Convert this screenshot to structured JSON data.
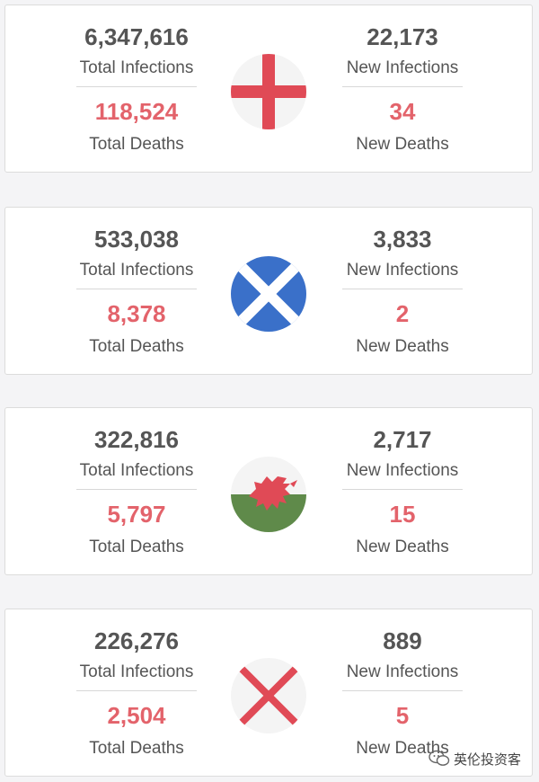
{
  "labels": {
    "total_infections": "Total Infections",
    "new_infections": "New Infections",
    "total_deaths": "Total Deaths",
    "new_deaths": "New Deaths"
  },
  "colors": {
    "number": "#555555",
    "deaths": "#e3636b",
    "england_red": "#e04a56",
    "scotland_blue": "#3a70c9",
    "wales_green": "#5f8a4a",
    "wales_red": "#e04a56",
    "ni_red": "#e04a56"
  },
  "cards": [
    {
      "flag_icon": "england-flag-icon",
      "total_infections": "6,347,616",
      "new_infections": "22,173",
      "total_deaths": "118,524",
      "new_deaths": "34"
    },
    {
      "flag_icon": "scotland-flag-icon",
      "total_infections": "533,038",
      "new_infections": "3,833",
      "total_deaths": "8,378",
      "new_deaths": "2"
    },
    {
      "flag_icon": "wales-flag-icon",
      "total_infections": "322,816",
      "new_infections": "2,717",
      "total_deaths": "5,797",
      "new_deaths": "15"
    },
    {
      "flag_icon": "northern-ireland-flag-icon",
      "total_infections": "226,276",
      "new_infections": "889",
      "total_deaths": "2,504",
      "new_deaths": "5"
    }
  ],
  "watermark": {
    "icon": "wechat-icon",
    "text": "英伦投资客"
  }
}
